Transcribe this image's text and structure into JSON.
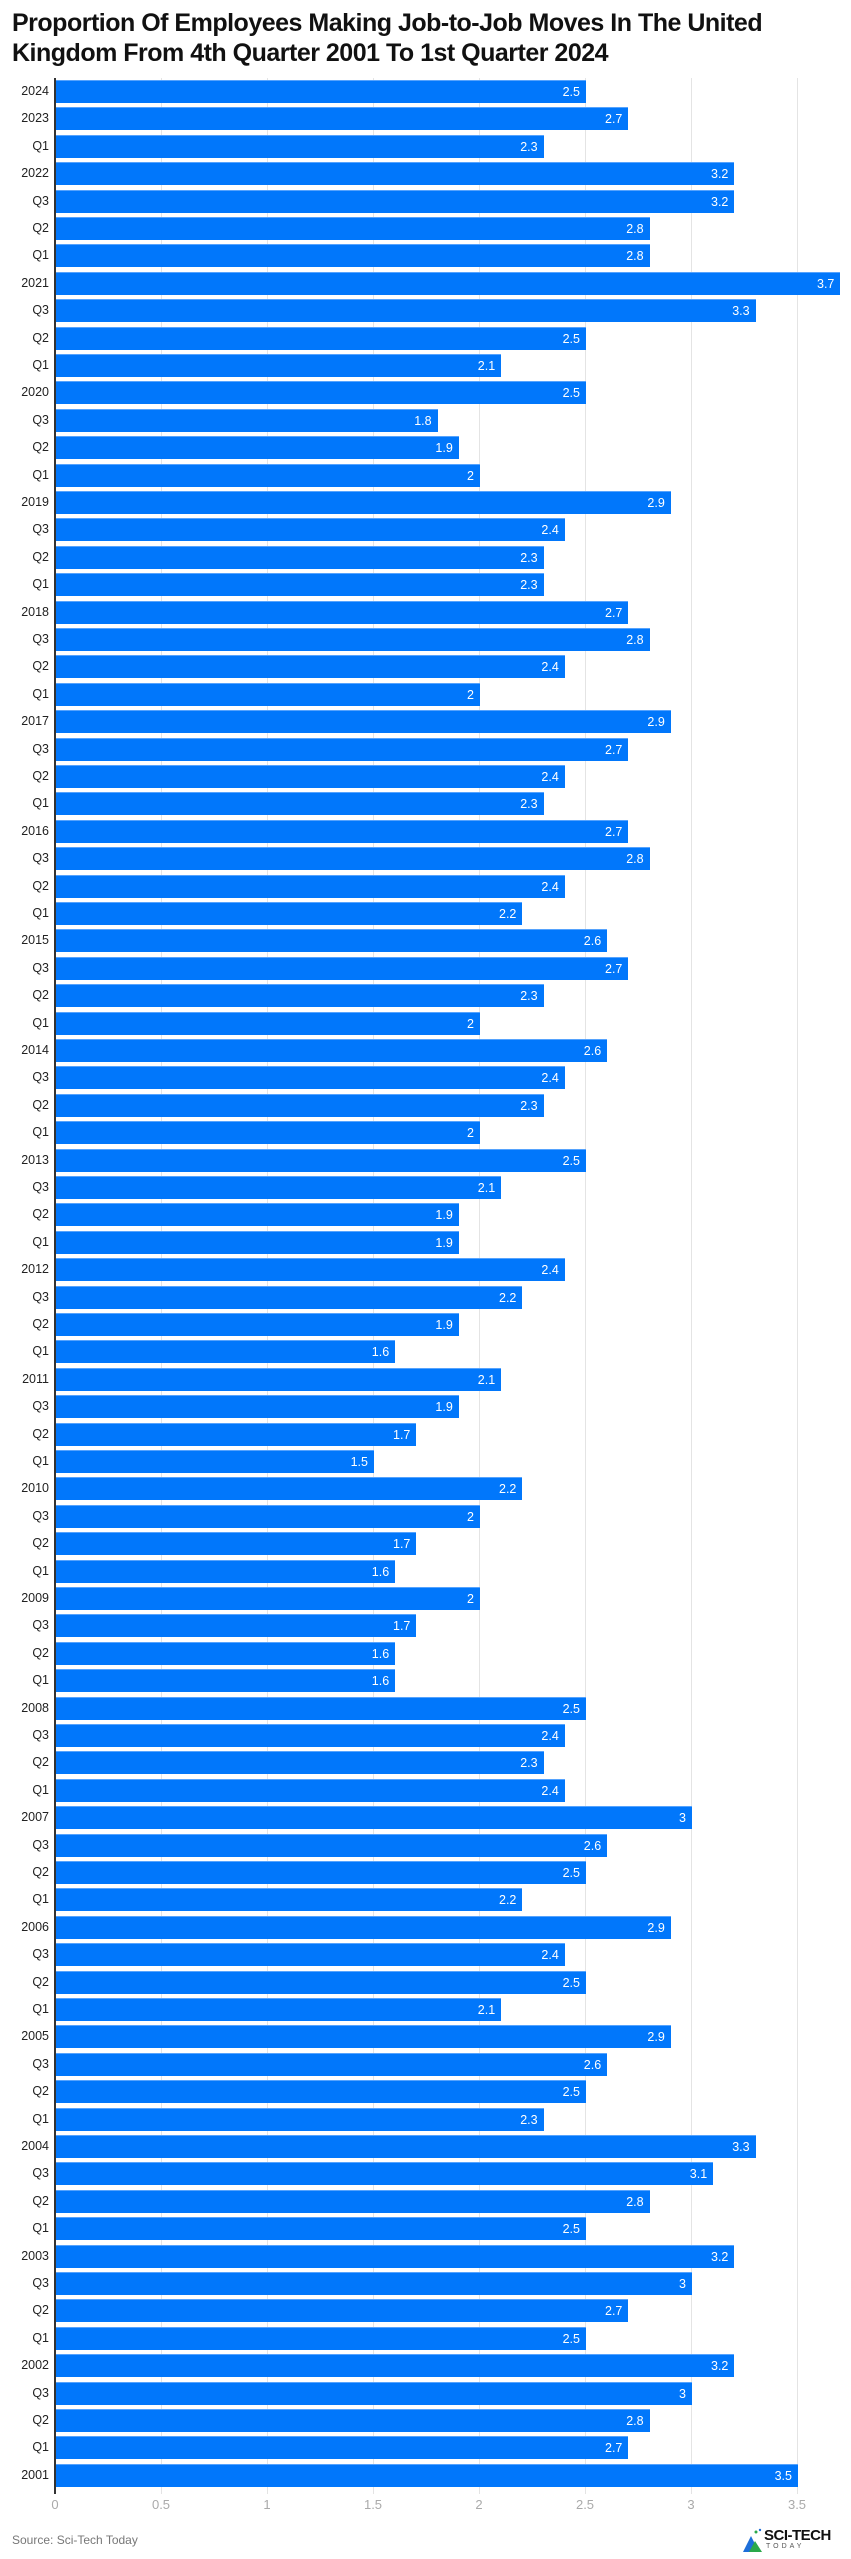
{
  "chart_data": {
    "type": "bar",
    "orientation": "horizontal",
    "title": "Proportion Of Employees Making Job-to-Job Moves In The United Kingdom From 4th Quarter 2001 To 1st Quarter 2024",
    "xlabel": "",
    "ylabel": "",
    "xlim": [
      0,
      3.5
    ],
    "x_ticks": [
      "0",
      "0.5",
      "1",
      "1.5",
      "2",
      "2.5",
      "3",
      "3.5"
    ],
    "grid": true,
    "legend": null,
    "bar_color": "#0177fb",
    "categories": [
      "2024",
      "2023",
      "Q1",
      "2022",
      "Q3",
      "Q2",
      "Q1",
      "2021",
      "Q3",
      "Q2",
      "Q1",
      "2020",
      "Q3",
      "Q2",
      "Q1",
      "2019",
      "Q3",
      "Q2",
      "Q1",
      "2018",
      "Q3",
      "Q2",
      "Q1",
      "2017",
      "Q3",
      "Q2",
      "Q1",
      "2016",
      "Q3",
      "Q2",
      "Q1",
      "2015",
      "Q3",
      "Q2",
      "Q1",
      "2014",
      "Q3",
      "Q2",
      "Q1",
      "2013",
      "Q3",
      "Q2",
      "Q1",
      "2012",
      "Q3",
      "Q2",
      "Q1",
      "2011",
      "Q3",
      "Q2",
      "Q1",
      "2010",
      "Q3",
      "Q2",
      "Q1",
      "2009",
      "Q3",
      "Q2",
      "Q1",
      "2008",
      "Q3",
      "Q2",
      "Q1",
      "2007",
      "Q3",
      "Q2",
      "Q1",
      "2006",
      "Q3",
      "Q2",
      "Q1",
      "2005",
      "Q3",
      "Q2",
      "Q1",
      "2004",
      "Q3",
      "Q2",
      "Q1",
      "2003",
      "Q3",
      "Q2",
      "Q1",
      "2002",
      "Q3",
      "Q2",
      "Q1",
      "2001"
    ],
    "values": [
      2.5,
      2.7,
      2.3,
      3.2,
      3.2,
      2.8,
      2.8,
      3.7,
      3.3,
      2.5,
      2.1,
      2.5,
      1.8,
      1.9,
      2,
      2.9,
      2.4,
      2.3,
      2.3,
      2.7,
      2.8,
      2.4,
      2,
      2.9,
      2.7,
      2.4,
      2.3,
      2.7,
      2.8,
      2.4,
      2.2,
      2.6,
      2.7,
      2.3,
      2,
      2.6,
      2.4,
      2.3,
      2,
      2.5,
      2.1,
      1.9,
      1.9,
      2.4,
      2.2,
      1.9,
      1.6,
      2.1,
      1.9,
      1.7,
      1.5,
      2.2,
      2,
      1.7,
      1.6,
      2,
      1.7,
      1.6,
      1.6,
      2.5,
      2.4,
      2.3,
      2.4,
      3,
      2.6,
      2.5,
      2.2,
      2.9,
      2.4,
      2.5,
      2.1,
      2.9,
      2.6,
      2.5,
      2.3,
      3.3,
      3.1,
      2.8,
      2.5,
      3.2,
      3,
      2.7,
      2.5,
      3.2,
      3,
      2.8,
      2.7,
      3.5
    ]
  },
  "footer": {
    "source": "Source: Sci-Tech Today",
    "logo_main": "SCI-TECH",
    "logo_sub": "TODAY"
  }
}
